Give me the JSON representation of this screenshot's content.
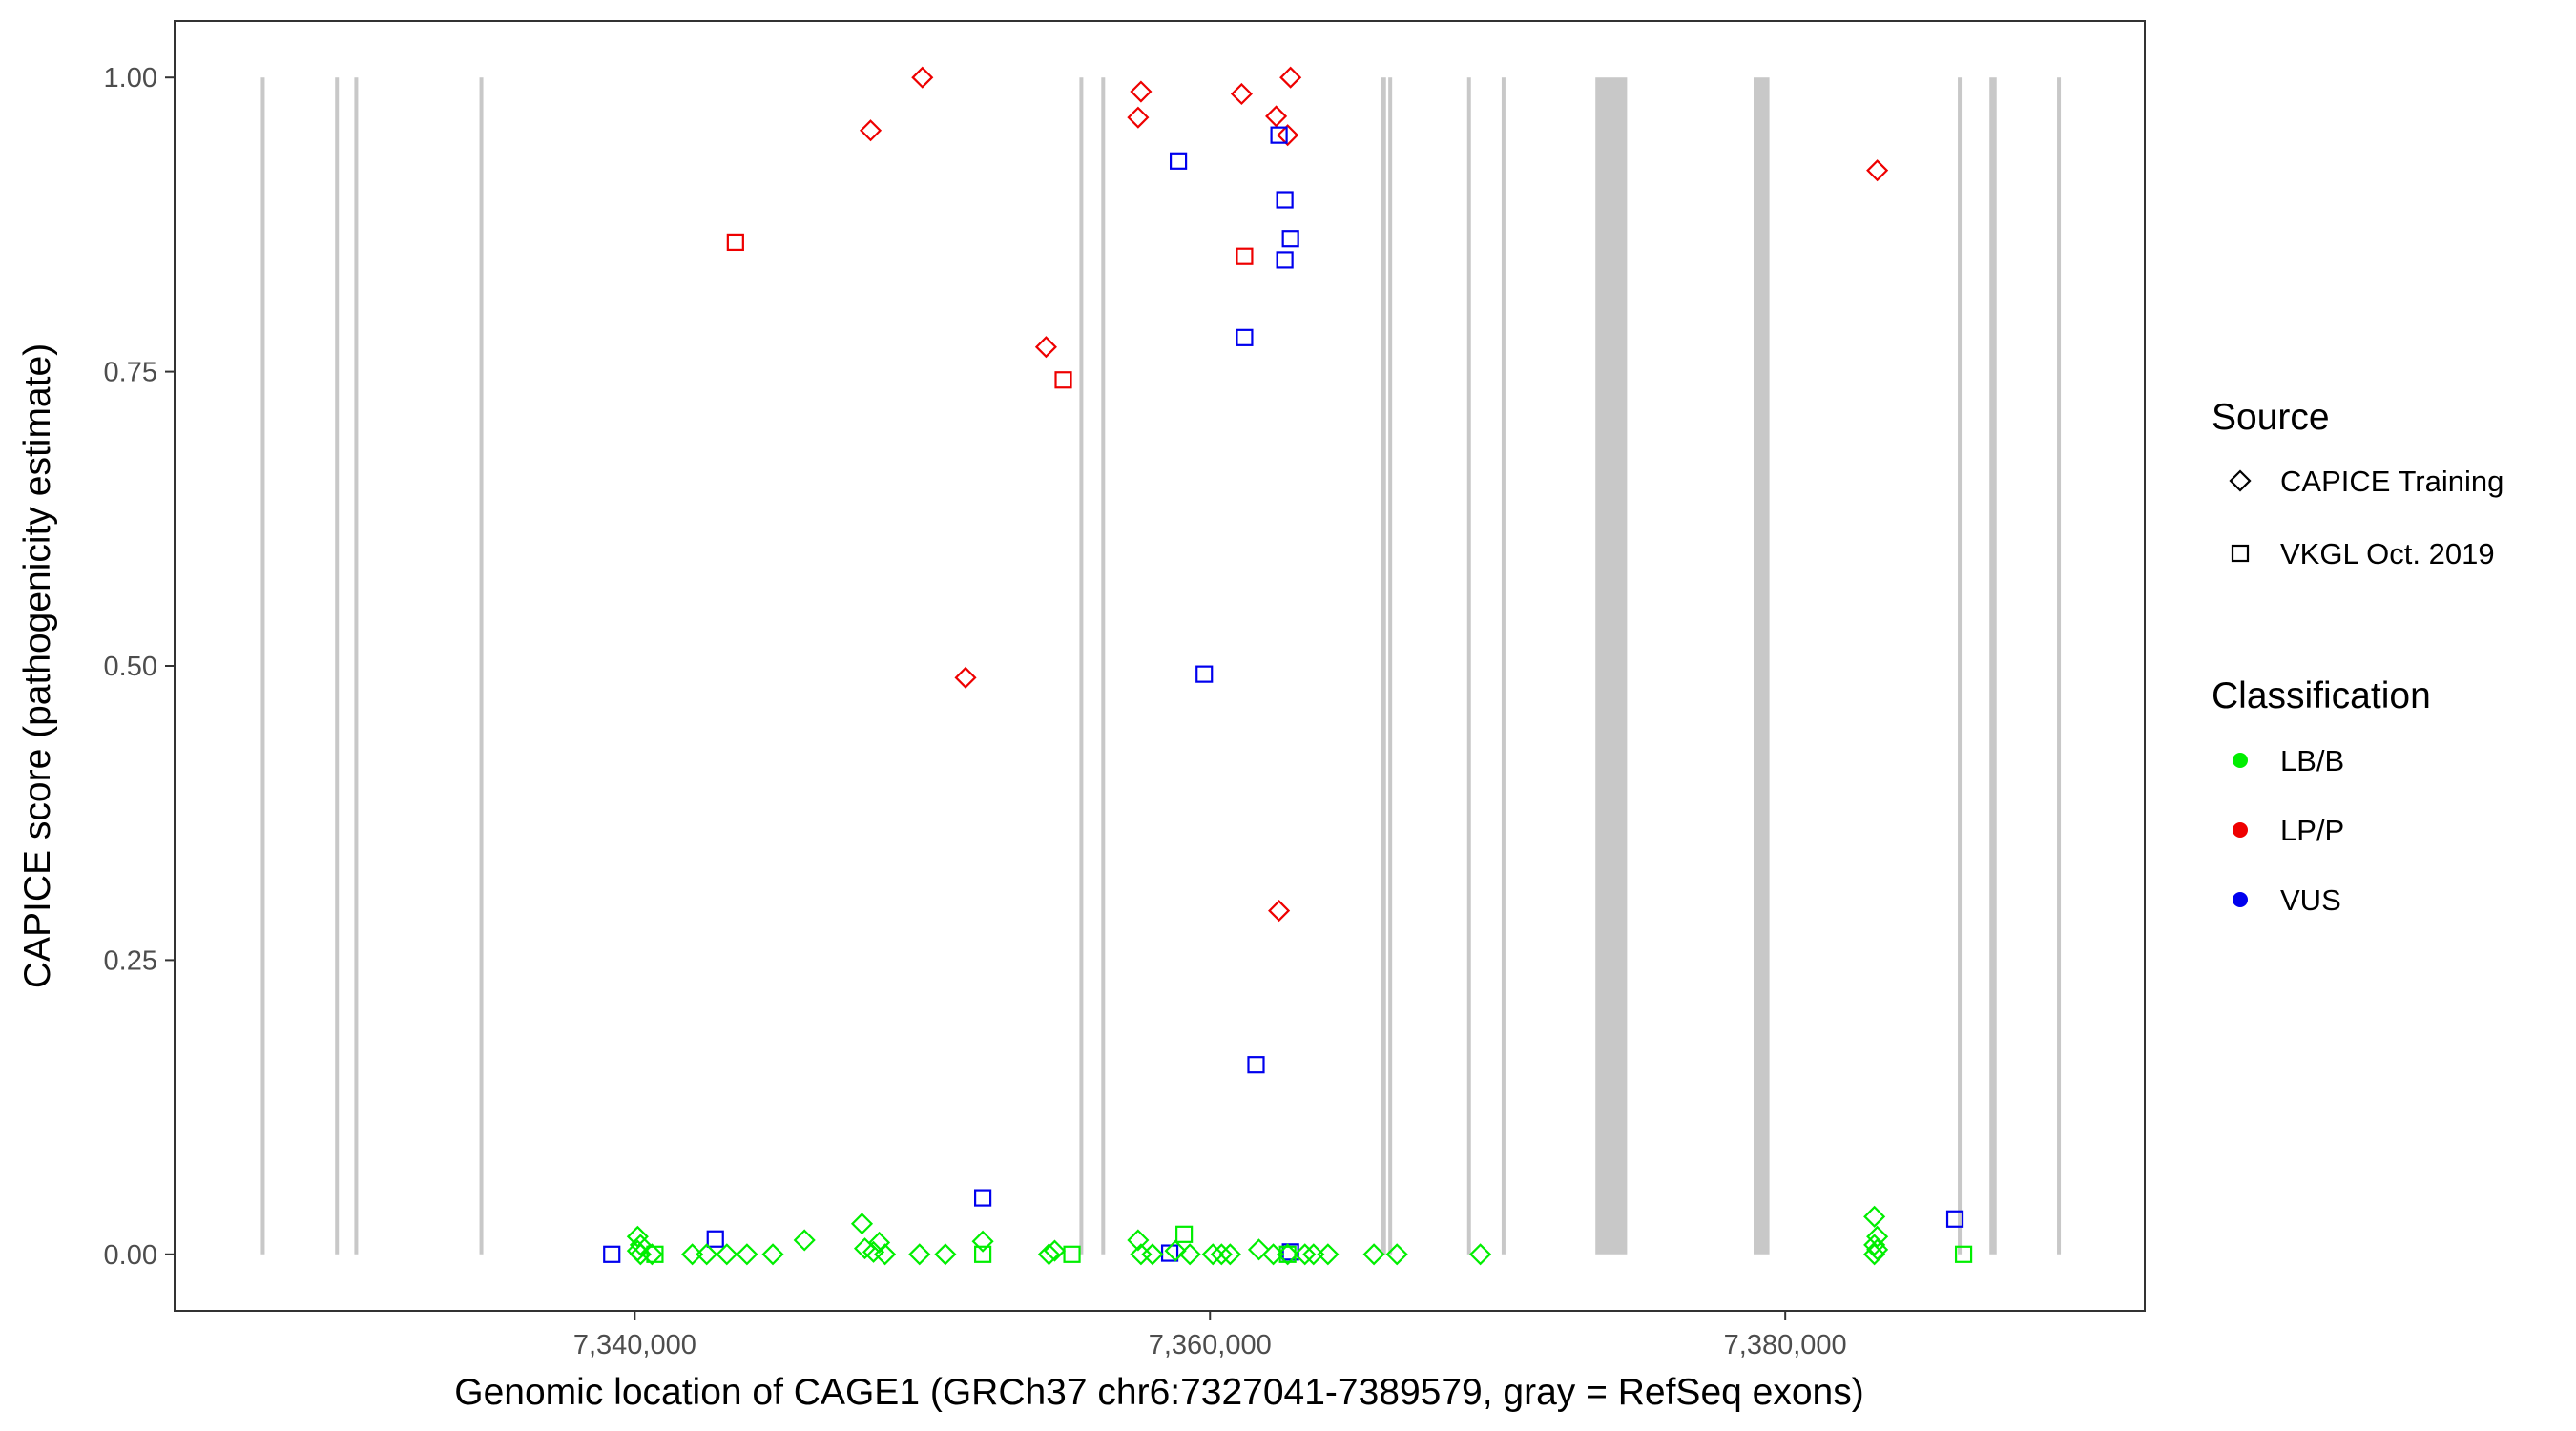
{
  "chart_data": {
    "type": "scatter",
    "title": "",
    "xlabel": "Genomic location of CAGE1 (GRCh37 chr6:7327041-7389579, gray = RefSeq exons)",
    "ylabel": "CAPICE score (pathogenicity estimate)",
    "xlim": [
      7324000,
      7392500
    ],
    "ylim": [
      -0.048,
      1.048
    ],
    "x_ticks": [
      {
        "value": 7340000,
        "label": "7,340,000"
      },
      {
        "value": 7360000,
        "label": "7,360,000"
      },
      {
        "value": 7380000,
        "label": "7,380,000"
      }
    ],
    "y_ticks": [
      {
        "value": 0.0,
        "label": "0.00"
      },
      {
        "value": 0.25,
        "label": "0.25"
      },
      {
        "value": 0.5,
        "label": "0.50"
      },
      {
        "value": 0.75,
        "label": "0.75"
      },
      {
        "value": 1.0,
        "label": "1.00"
      }
    ],
    "grid": false,
    "legend_position": "right",
    "exons": [
      {
        "start": 7327000,
        "end": 7327120
      },
      {
        "start": 7329580,
        "end": 7329700
      },
      {
        "start": 7330250,
        "end": 7330370
      },
      {
        "start": 7334600,
        "end": 7334720
      },
      {
        "start": 7355460,
        "end": 7355580
      },
      {
        "start": 7356220,
        "end": 7356340
      },
      {
        "start": 7365940,
        "end": 7366120
      },
      {
        "start": 7366200,
        "end": 7366320
      },
      {
        "start": 7368940,
        "end": 7369060
      },
      {
        "start": 7370140,
        "end": 7370260
      },
      {
        "start": 7373400,
        "end": 7374500
      },
      {
        "start": 7378900,
        "end": 7379450
      },
      {
        "start": 7386000,
        "end": 7386120
      },
      {
        "start": 7387100,
        "end": 7387350
      },
      {
        "start": 7389450,
        "end": 7389570
      }
    ],
    "legends": {
      "source": {
        "title": "Source",
        "items": [
          {
            "label": "CAPICE Training",
            "shape": "diamond"
          },
          {
            "label": "VKGL Oct. 2019",
            "shape": "square"
          }
        ]
      },
      "classification": {
        "title": "Classification",
        "items": [
          {
            "label": "LB/B",
            "color": "#00ee00"
          },
          {
            "label": "LP/P",
            "color": "#ee0000"
          },
          {
            "label": "VUS",
            "color": "#0000ee"
          }
        ]
      }
    },
    "series": [
      {
        "classification": "LP/P",
        "source": "CAPICE Training",
        "points": [
          [
            7348200,
            0.955
          ],
          [
            7350000,
            1.0
          ],
          [
            7351500,
            0.49
          ],
          [
            7354300,
            0.771
          ],
          [
            7357500,
            0.966
          ],
          [
            7357600,
            0.988
          ],
          [
            7361100,
            0.986
          ],
          [
            7362300,
            0.967
          ],
          [
            7362700,
            0.951
          ],
          [
            7362800,
            1.0
          ],
          [
            7362400,
            0.292
          ],
          [
            7383200,
            0.921
          ]
        ]
      },
      {
        "classification": "LP/P",
        "source": "VKGL Oct. 2019",
        "points": [
          [
            7343500,
            0.86
          ],
          [
            7354900,
            0.743
          ],
          [
            7361200,
            0.848
          ]
        ]
      },
      {
        "classification": "VUS",
        "source": "VKGL Oct. 2019",
        "points": [
          [
            7339200,
            0.0
          ],
          [
            7342800,
            0.013
          ],
          [
            7352100,
            0.048
          ],
          [
            7358900,
            0.929
          ],
          [
            7358600,
            0.001
          ],
          [
            7359800,
            0.493
          ],
          [
            7361200,
            0.779
          ],
          [
            7361600,
            0.161
          ],
          [
            7362400,
            0.951
          ],
          [
            7362600,
            0.896
          ],
          [
            7362800,
            0.863
          ],
          [
            7362600,
            0.845
          ],
          [
            7362800,
            0.002
          ],
          [
            7385900,
            0.03
          ]
        ]
      },
      {
        "classification": "LB/B",
        "source": "CAPICE Training",
        "points": [
          [
            7340100,
            0.015
          ],
          [
            7340200,
            0.008
          ],
          [
            7340100,
            0.003
          ],
          [
            7340200,
            0.0
          ],
          [
            7340600,
            0.0
          ],
          [
            7342000,
            0.0
          ],
          [
            7342500,
            0.0
          ],
          [
            7343200,
            0.0
          ],
          [
            7343900,
            0.0
          ],
          [
            7344800,
            0.0
          ],
          [
            7345900,
            0.012
          ],
          [
            7347900,
            0.026
          ],
          [
            7348000,
            0.005
          ],
          [
            7348300,
            0.002
          ],
          [
            7348500,
            0.01
          ],
          [
            7348700,
            0.0
          ],
          [
            7349900,
            0.0
          ],
          [
            7350800,
            0.0
          ],
          [
            7352100,
            0.011
          ],
          [
            7354400,
            0.0
          ],
          [
            7354600,
            0.003
          ],
          [
            7357500,
            0.012
          ],
          [
            7357600,
            0.0
          ],
          [
            7358000,
            0.0
          ],
          [
            7358800,
            0.003
          ],
          [
            7359300,
            0.0
          ],
          [
            7360100,
            0.0
          ],
          [
            7360400,
            0.0
          ],
          [
            7360700,
            0.0
          ],
          [
            7361700,
            0.004
          ],
          [
            7362200,
            0.0
          ],
          [
            7362700,
            0.0
          ],
          [
            7363300,
            0.0
          ],
          [
            7363600,
            0.0
          ],
          [
            7364100,
            0.0
          ],
          [
            7365700,
            0.0
          ],
          [
            7366500,
            0.0
          ],
          [
            7369400,
            0.0
          ],
          [
            7383100,
            0.032
          ],
          [
            7383200,
            0.015
          ],
          [
            7383100,
            0.008
          ],
          [
            7383200,
            0.004
          ],
          [
            7383100,
            0.0
          ]
        ]
      },
      {
        "classification": "LB/B",
        "source": "VKGL Oct. 2019",
        "points": [
          [
            7340700,
            0.0
          ],
          [
            7352100,
            0.0
          ],
          [
            7355200,
            0.0
          ],
          [
            7359100,
            0.017
          ],
          [
            7362700,
            0.0
          ],
          [
            7386200,
            0.0
          ]
        ]
      }
    ]
  }
}
